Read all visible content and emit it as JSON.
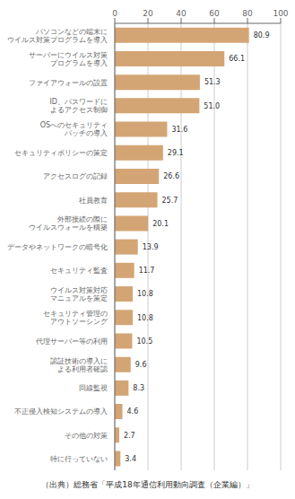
{
  "chart_data": {
    "type": "bar",
    "orientation": "horizontal",
    "footer": "（出典）総務省「平成18年通信利用動向調査（企業編）」",
    "categories": [
      "パソコンなどの端末に\nウイルス対策プログラムを導入",
      "サーバーにウイルス対策\nプログラムを導入",
      "ファイアウォールの設置",
      "ID、パスワードに\nよるアクセス制御",
      "OSへのセキュリティ\nパッチの導入",
      "セキュリティポリシーの策定",
      "アクセスログの記録",
      "社員教育",
      "外部接続の際に\nウイルスウォールを構築",
      "データやネットワークの暗号化",
      "セキュリティ監査",
      "ウイルス対策対応\nマニュアルを策定",
      "セキュリティ管理の\nアウトソーシング",
      "代理サーバー等の利用",
      "認証技術の導入に\nよる利用者確認",
      "回線監視",
      "不正侵入検知システムの導入",
      "その他の対策",
      "特に行っていない"
    ],
    "values": [
      80.9,
      66.1,
      51.3,
      51.0,
      31.6,
      29.1,
      26.6,
      25.7,
      20.1,
      13.9,
      11.7,
      10.8,
      10.8,
      10.5,
      9.6,
      8.3,
      4.6,
      2.7,
      3.4
    ],
    "value_labels": [
      "80.9",
      "66.1",
      "51.3",
      "51.0",
      "31.6",
      "29.1",
      "26.6",
      "25.7",
      "20.1",
      "13.9",
      "11.7",
      "10.8",
      "10.8",
      "10.5",
      "9.6",
      "8.3",
      "4.6",
      "2.7",
      "3.4"
    ],
    "color": "#D4A574",
    "xlim": [
      0,
      100
    ],
    "xticks": [
      0,
      20,
      40,
      60,
      80,
      100
    ],
    "grid": true,
    "data_labels": true
  }
}
